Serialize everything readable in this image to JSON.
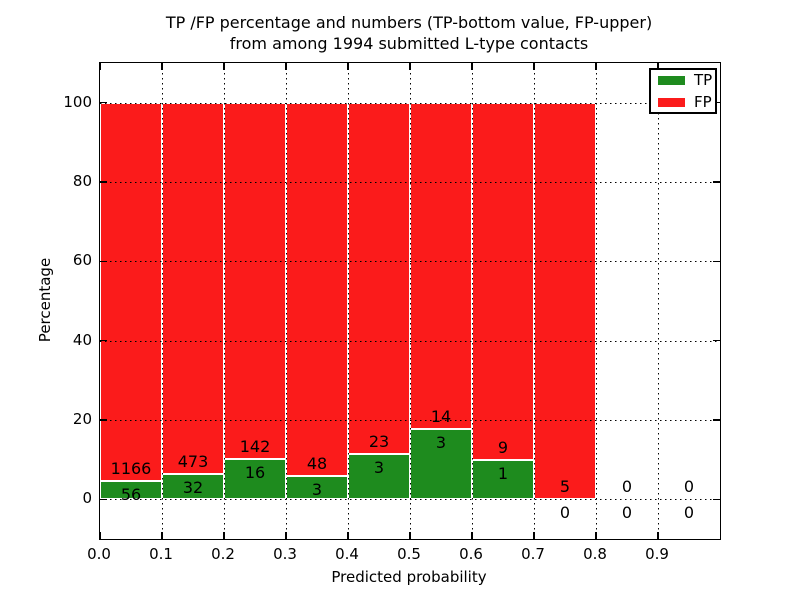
{
  "chart_data": {
    "type": "bar",
    "stacked": true,
    "title_lines": [
      "TP /FP percentage and numbers (TP-bottom value, FP-upper)",
      "from among 1994 submitted L-type contacts"
    ],
    "title": "TP /FP percentage and numbers (TP-bottom value, FP-upper)\nfrom among 1994 submitted L-type contacts",
    "xlabel": "Predicted probability",
    "ylabel": "Percentage",
    "xlim": [
      0.0,
      1.0
    ],
    "ylim": [
      -10,
      110
    ],
    "xticks": [
      "0.0",
      "0.1",
      "0.2",
      "0.3",
      "0.4",
      "0.5",
      "0.6",
      "0.7",
      "0.8",
      "0.9"
    ],
    "yticks": [
      0,
      20,
      40,
      60,
      80,
      100
    ],
    "grid": "dotted",
    "total_contacts": 1994,
    "colors": {
      "tp": "#1e8b1e",
      "fp": "#fb1b1b"
    },
    "legend": {
      "position": "upper right",
      "entries": [
        {
          "label": "TP",
          "color": "#1e8b1e"
        },
        {
          "label": "FP",
          "color": "#fb1b1b"
        }
      ]
    },
    "bins": [
      {
        "range": [
          0.0,
          0.1
        ],
        "tp_count": 56,
        "fp_count": 1166,
        "tp_pct": 4.58,
        "fp_pct": 95.42
      },
      {
        "range": [
          0.1,
          0.2
        ],
        "tp_count": 32,
        "fp_count": 473,
        "tp_pct": 6.34,
        "fp_pct": 93.66
      },
      {
        "range": [
          0.2,
          0.3
        ],
        "tp_count": 16,
        "fp_count": 142,
        "tp_pct": 10.13,
        "fp_pct": 89.87
      },
      {
        "range": [
          0.3,
          0.4
        ],
        "tp_count": 3,
        "fp_count": 48,
        "tp_pct": 5.88,
        "fp_pct": 94.12
      },
      {
        "range": [
          0.4,
          0.5
        ],
        "tp_count": 3,
        "fp_count": 23,
        "tp_pct": 11.54,
        "fp_pct": 88.46
      },
      {
        "range": [
          0.5,
          0.6
        ],
        "tp_count": 3,
        "fp_count": 14,
        "tp_pct": 17.65,
        "fp_pct": 82.35
      },
      {
        "range": [
          0.6,
          0.7
        ],
        "tp_count": 1,
        "fp_count": 9,
        "tp_pct": 10.0,
        "fp_pct": 90.0
      },
      {
        "range": [
          0.7,
          0.8
        ],
        "tp_count": 0,
        "fp_count": 5,
        "tp_pct": 0.0,
        "fp_pct": 100.0
      },
      {
        "range": [
          0.8,
          0.9
        ],
        "tp_count": 0,
        "fp_count": 0,
        "tp_pct": 0.0,
        "fp_pct": 0.0
      },
      {
        "range": [
          0.9,
          1.0
        ],
        "tp_count": 0,
        "fp_count": 0,
        "tp_pct": 0.0,
        "fp_pct": 0.0
      }
    ]
  }
}
